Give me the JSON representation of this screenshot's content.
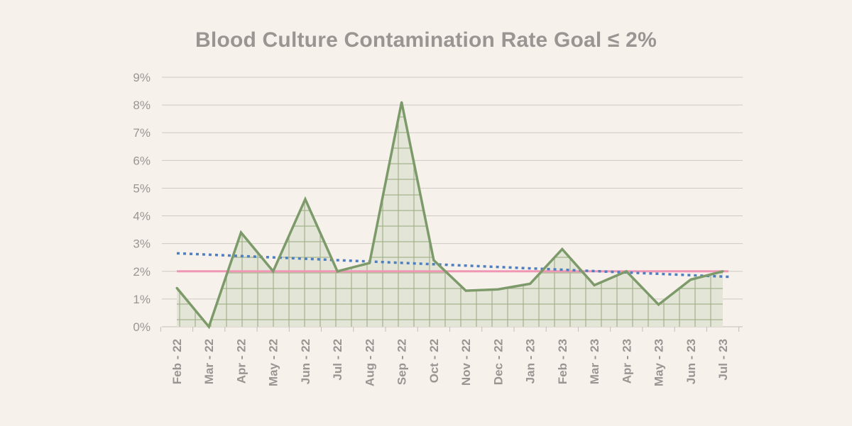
{
  "chart_data": {
    "type": "area",
    "title": "Blood Culture Contamination Rate Goal ≤ 2%",
    "categories": [
      "Feb - 22",
      "Mar - 22",
      "Apr - 22",
      "May - 22",
      "Jun - 22",
      "Jul - 22",
      "Aug - 22",
      "Sep - 22",
      "Oct - 22",
      "Nov - 22",
      "Dec - 22",
      "Jan - 23",
      "Feb - 23",
      "Mar - 23",
      "Apr - 23",
      "May - 23",
      "Jun - 23",
      "Jul - 23"
    ],
    "yticks": [
      "0%",
      "1%",
      "2%",
      "3%",
      "4%",
      "5%",
      "6%",
      "7%",
      "8%",
      "9%"
    ],
    "ylim": [
      0,
      9
    ],
    "series": [
      {
        "values": [
          1.4,
          0.0,
          3.4,
          2.0,
          4.6,
          2.0,
          2.3,
          8.1,
          2.4,
          1.3,
          1.35,
          1.55,
          2.8,
          1.5,
          2.0,
          0.8,
          1.7,
          2.0
        ],
        "color": "#7d9a6a",
        "fill": "#dfe3d2"
      }
    ],
    "goal": {
      "value": 2.0,
      "color": "#ef97b5"
    },
    "trendline": {
      "start": 2.65,
      "end": 1.8,
      "color": "#4f7fc0",
      "style": "dotted"
    },
    "grid": true,
    "legend": "none"
  }
}
